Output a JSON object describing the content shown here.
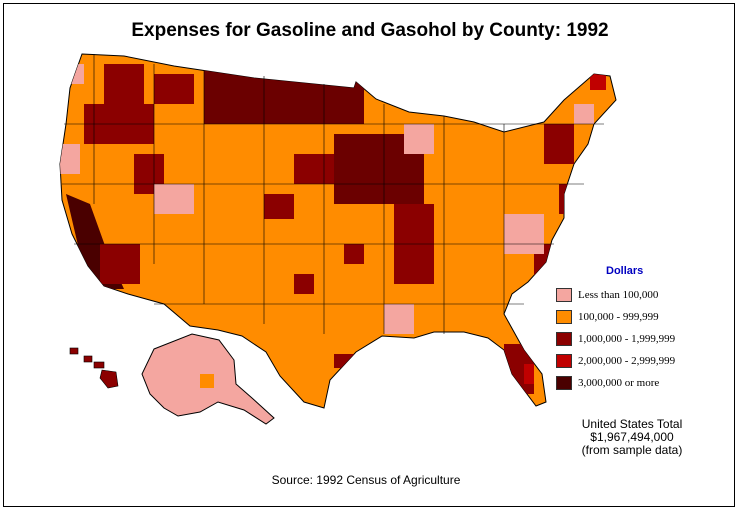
{
  "title": "Expenses for Gasoline and Gasohol by County:  1992",
  "legend": {
    "title": "Dollars",
    "items": [
      {
        "label": "Less than 100,000",
        "color": "#f4a6a0"
      },
      {
        "label": "100,000  -  999,999",
        "color": "#ff8c00"
      },
      {
        "label": "1,000,000  -  1,999,999",
        "color": "#8b0000"
      },
      {
        "label": "2,000,000  -  2,999,999",
        "color": "#c00000"
      },
      {
        "label": "3,000,000 or more",
        "color": "#4a0000"
      }
    ]
  },
  "total": {
    "line1": "United States Total",
    "line2": "$1,967,494,000",
    "line3": "(from sample data)"
  },
  "source": "Source:  1992 Census of Agriculture"
}
